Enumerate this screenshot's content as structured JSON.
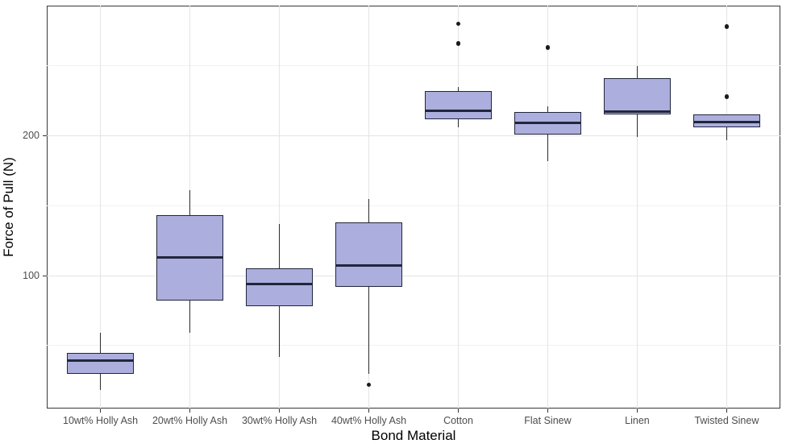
{
  "chart_data": {
    "type": "boxplot",
    "title": "",
    "xlabel": "Bond Material",
    "ylabel": "Force of Pull (N)",
    "categories": [
      "10wt% Holly Ash",
      "20wt% Holly Ash",
      "30wt% Holly Ash",
      "40wt% Holly Ash",
      "Cotton",
      "Flat Sinew",
      "Linen",
      "Twisted Sinew"
    ],
    "boxes": [
      {
        "category": "10wt% Holly Ash",
        "whisker_low": 18,
        "q1": 30,
        "median": 39,
        "q3": 45,
        "whisker_high": 59,
        "outliers": []
      },
      {
        "category": "20wt% Holly Ash",
        "whisker_low": 59,
        "q1": 82,
        "median": 113,
        "q3": 143,
        "whisker_high": 161,
        "outliers": []
      },
      {
        "category": "30wt% Holly Ash",
        "whisker_low": 42,
        "q1": 78,
        "median": 94,
        "q3": 105,
        "whisker_high": 137,
        "outliers": []
      },
      {
        "category": "40wt% Holly Ash",
        "whisker_low": 30,
        "q1": 92,
        "median": 107,
        "q3": 138,
        "whisker_high": 155,
        "outliers": [
          22
        ]
      },
      {
        "category": "Cotton",
        "whisker_low": 206,
        "q1": 212,
        "median": 218,
        "q3": 232,
        "whisker_high": 235,
        "outliers": [
          266,
          280
        ]
      },
      {
        "category": "Flat Sinew",
        "whisker_low": 182,
        "q1": 201,
        "median": 209,
        "q3": 217,
        "whisker_high": 221,
        "outliers": [
          263
        ]
      },
      {
        "category": "Linen",
        "whisker_low": 199,
        "q1": 215,
        "median": 217,
        "q3": 241,
        "whisker_high": 250,
        "outliers": []
      },
      {
        "category": "Twisted Sinew",
        "whisker_low": 197,
        "q1": 206,
        "median": 210,
        "q3": 215,
        "whisker_high": 215,
        "outliers": [
          228,
          278
        ]
      }
    ],
    "yticks": [
      100,
      200
    ],
    "minor_gridlines": [
      50,
      150,
      250
    ],
    "ylim": [
      5,
      293
    ],
    "grid": "horizontal major+minor, vertical at categories",
    "legend": "none",
    "box_width_fraction": 0.75,
    "colors": {
      "box_fill": "#acaedd",
      "box_border": "#22263c",
      "median": "#22263c",
      "whisker": "#2b2b2b",
      "outlier": "#1b1b1b",
      "grid_major": "#e4e4e4",
      "grid_minor": "#f1f1f1",
      "panel_border": "#383838",
      "tick_mark": "#333333",
      "tick_label": "#4d4d4d",
      "axis_title": "#000000",
      "background": "#ffffff"
    }
  }
}
